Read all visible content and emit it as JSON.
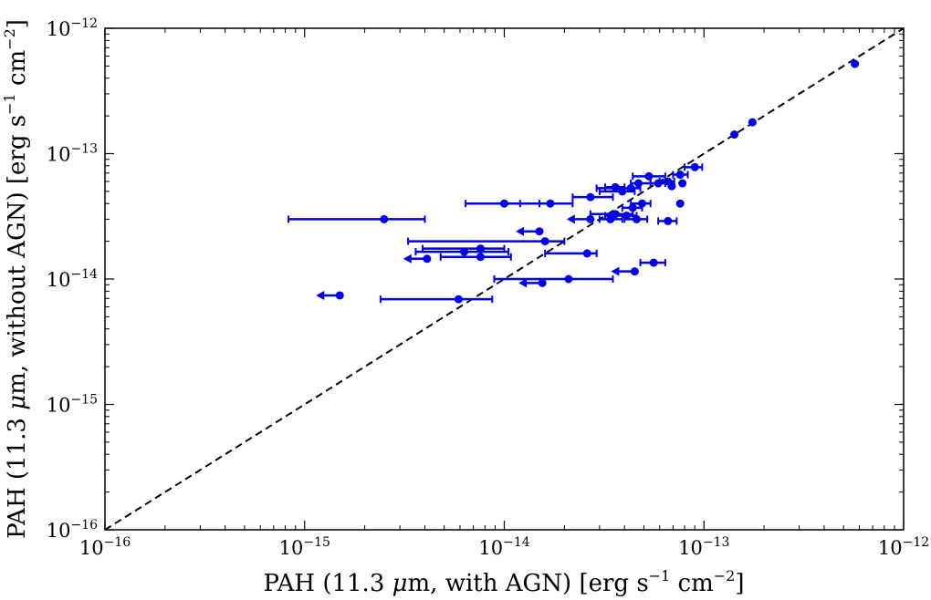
{
  "chart_data": {
    "type": "scatter",
    "scale": "log-log",
    "title": "",
    "xlabel": {
      "pre": "PAH (11.3 ",
      "mu": "μ",
      "mid": "m,  with AGN) [erg s",
      "e1": "−1",
      "mid2": " cm",
      "e2": "−2",
      "post": "]"
    },
    "ylabel": {
      "pre": "PAH (11.3 ",
      "mu": "μ",
      "mid": "m,  without AGN) [erg s",
      "e1": "−1",
      "mid2": " cm",
      "e2": "−2",
      "post": "]"
    },
    "xlim_exp": [
      -16,
      -12
    ],
    "ylim_exp": [
      -16,
      -12
    ],
    "xticks": [
      {
        "base": "10",
        "exp": "−16",
        "v": -16
      },
      {
        "base": "10",
        "exp": "−15",
        "v": -15
      },
      {
        "base": "10",
        "exp": "−14",
        "v": -14
      },
      {
        "base": "10",
        "exp": "−13",
        "v": -13
      },
      {
        "base": "10",
        "exp": "−12",
        "v": -12
      }
    ],
    "yticks": [
      {
        "base": "10",
        "exp": "−16",
        "v": -16
      },
      {
        "base": "10",
        "exp": "−15",
        "v": -15
      },
      {
        "base": "10",
        "exp": "−14",
        "v": -14
      },
      {
        "base": "10",
        "exp": "−13",
        "v": -13
      },
      {
        "base": "10",
        "exp": "−12",
        "v": -12
      }
    ],
    "reference_line": "y = x (dashed)",
    "marker_color": "#0000ee",
    "points": [
      {
        "x": 5.7e-13,
        "y": 5.2e-13
      },
      {
        "x": 1.75e-13,
        "y": 1.78e-13
      },
      {
        "x": 1.42e-13,
        "y": 1.42e-13
      },
      {
        "x": 9e-14,
        "y": 7.8e-14,
        "xerr": [
          8e-14,
          9.8e-14
        ]
      },
      {
        "x": 7.6e-14,
        "y": 6.8e-14,
        "xerr": [
          7e-14,
          8.3e-14
        ]
      },
      {
        "x": 6.6e-14,
        "y": 6e-14,
        "xerr": [
          6e-14,
          7.1e-14
        ]
      },
      {
        "x": 6.9e-14,
        "y": 5.5e-14
      },
      {
        "x": 7.8e-14,
        "y": 5.8e-14
      },
      {
        "x": 5.9e-14,
        "y": 5.8e-14,
        "xerr": [
          5.4e-14,
          6.4e-14
        ]
      },
      {
        "x": 5.3e-14,
        "y": 6.6e-14,
        "xerr": [
          4.4e-14,
          6.4e-14
        ]
      },
      {
        "x": 4.7e-14,
        "y": 5.8e-14,
        "xerr": [
          4.3e-14,
          5.4e-14
        ]
      },
      {
        "x": 3.6e-14,
        "y": 5.4e-14,
        "xerr": [
          3.2e-14,
          4e-14
        ]
      },
      {
        "x": 4.3e-14,
        "y": 5.3e-14,
        "xerr": [
          2.9e-14,
          4.8e-14
        ]
      },
      {
        "x": 3.9e-14,
        "y": 5e-14,
        "xerr": [
          3e-14,
          4.5e-14
        ]
      },
      {
        "x": 2.7e-14,
        "y": 4.5e-14,
        "xerr": [
          2.2e-14,
          3.5e-14
        ]
      },
      {
        "x": 1.7e-14,
        "y": 4e-14,
        "xerr": [
          1.2e-14,
          2.2e-14
        ]
      },
      {
        "x": 1e-14,
        "y": 4e-14,
        "xerr": [
          6.4e-15,
          1.5e-14
        ]
      },
      {
        "x": 4.9e-14,
        "y": 4e-14,
        "xerr": [
          4.3e-14,
          5.4e-14
        ]
      },
      {
        "x": 4.4e-14,
        "y": 3.7e-14,
        "xerr": [
          3.9e-14,
          4.9e-14
        ]
      },
      {
        "x": 7.6e-14,
        "y": 4e-14
      },
      {
        "x": 2.7e-14,
        "y": 3e-14,
        "upper": true
      },
      {
        "x": 3.4e-14,
        "y": 3e-14,
        "xerr": [
          3e-14,
          3.9e-14
        ]
      },
      {
        "x": 4.1e-14,
        "y": 3.2e-14,
        "xerr": [
          3.2e-14,
          4.6e-14
        ]
      },
      {
        "x": 3.6e-14,
        "y": 3.3e-14,
        "xerr": [
          2.7e-14,
          4.4e-14
        ]
      },
      {
        "x": 4.6e-14,
        "y": 3e-14,
        "xerr": [
          4e-14,
          5.2e-14
        ]
      },
      {
        "x": 6.6e-14,
        "y": 2.9e-14,
        "xerr": [
          5.9e-14,
          7.3e-14
        ]
      },
      {
        "x": 2.5e-15,
        "y": 3e-14,
        "xerr": [
          8.3e-16,
          4e-15
        ]
      },
      {
        "x": 1.5e-14,
        "y": 2.4e-14,
        "upper": true
      },
      {
        "x": 1.6e-14,
        "y": 2e-14,
        "xerr": [
          3.3e-15,
          2e-14
        ]
      },
      {
        "x": 7.6e-15,
        "y": 1.75e-14,
        "xerr": [
          3.9e-15,
          1e-14
        ]
      },
      {
        "x": 6.3e-15,
        "y": 1.65e-14,
        "xerr": [
          3.6e-15,
          1.05e-14
        ]
      },
      {
        "x": 2.6e-14,
        "y": 1.6e-14,
        "xerr": [
          1.6e-14,
          2.9e-14
        ]
      },
      {
        "x": 7.6e-15,
        "y": 1.5e-14,
        "xerr": [
          4.8e-15,
          1.08e-14
        ]
      },
      {
        "x": 4.1e-15,
        "y": 1.45e-14,
        "upper": true
      },
      {
        "x": 5.6e-14,
        "y": 1.35e-14,
        "xerr": [
          4.8e-14,
          6.4e-14
        ]
      },
      {
        "x": 4.5e-14,
        "y": 1.15e-14,
        "upper": true
      },
      {
        "x": 2.1e-14,
        "y": 1e-14,
        "xerr": [
          8.9e-15,
          3.5e-14
        ]
      },
      {
        "x": 1.55e-14,
        "y": 9.3e-15,
        "upper": true
      },
      {
        "x": 1.5e-15,
        "y": 7.4e-15,
        "upper": true
      },
      {
        "x": 5.9e-15,
        "y": 6.9e-15,
        "xerr": [
          2.4e-15,
          8.7e-15
        ]
      }
    ]
  }
}
